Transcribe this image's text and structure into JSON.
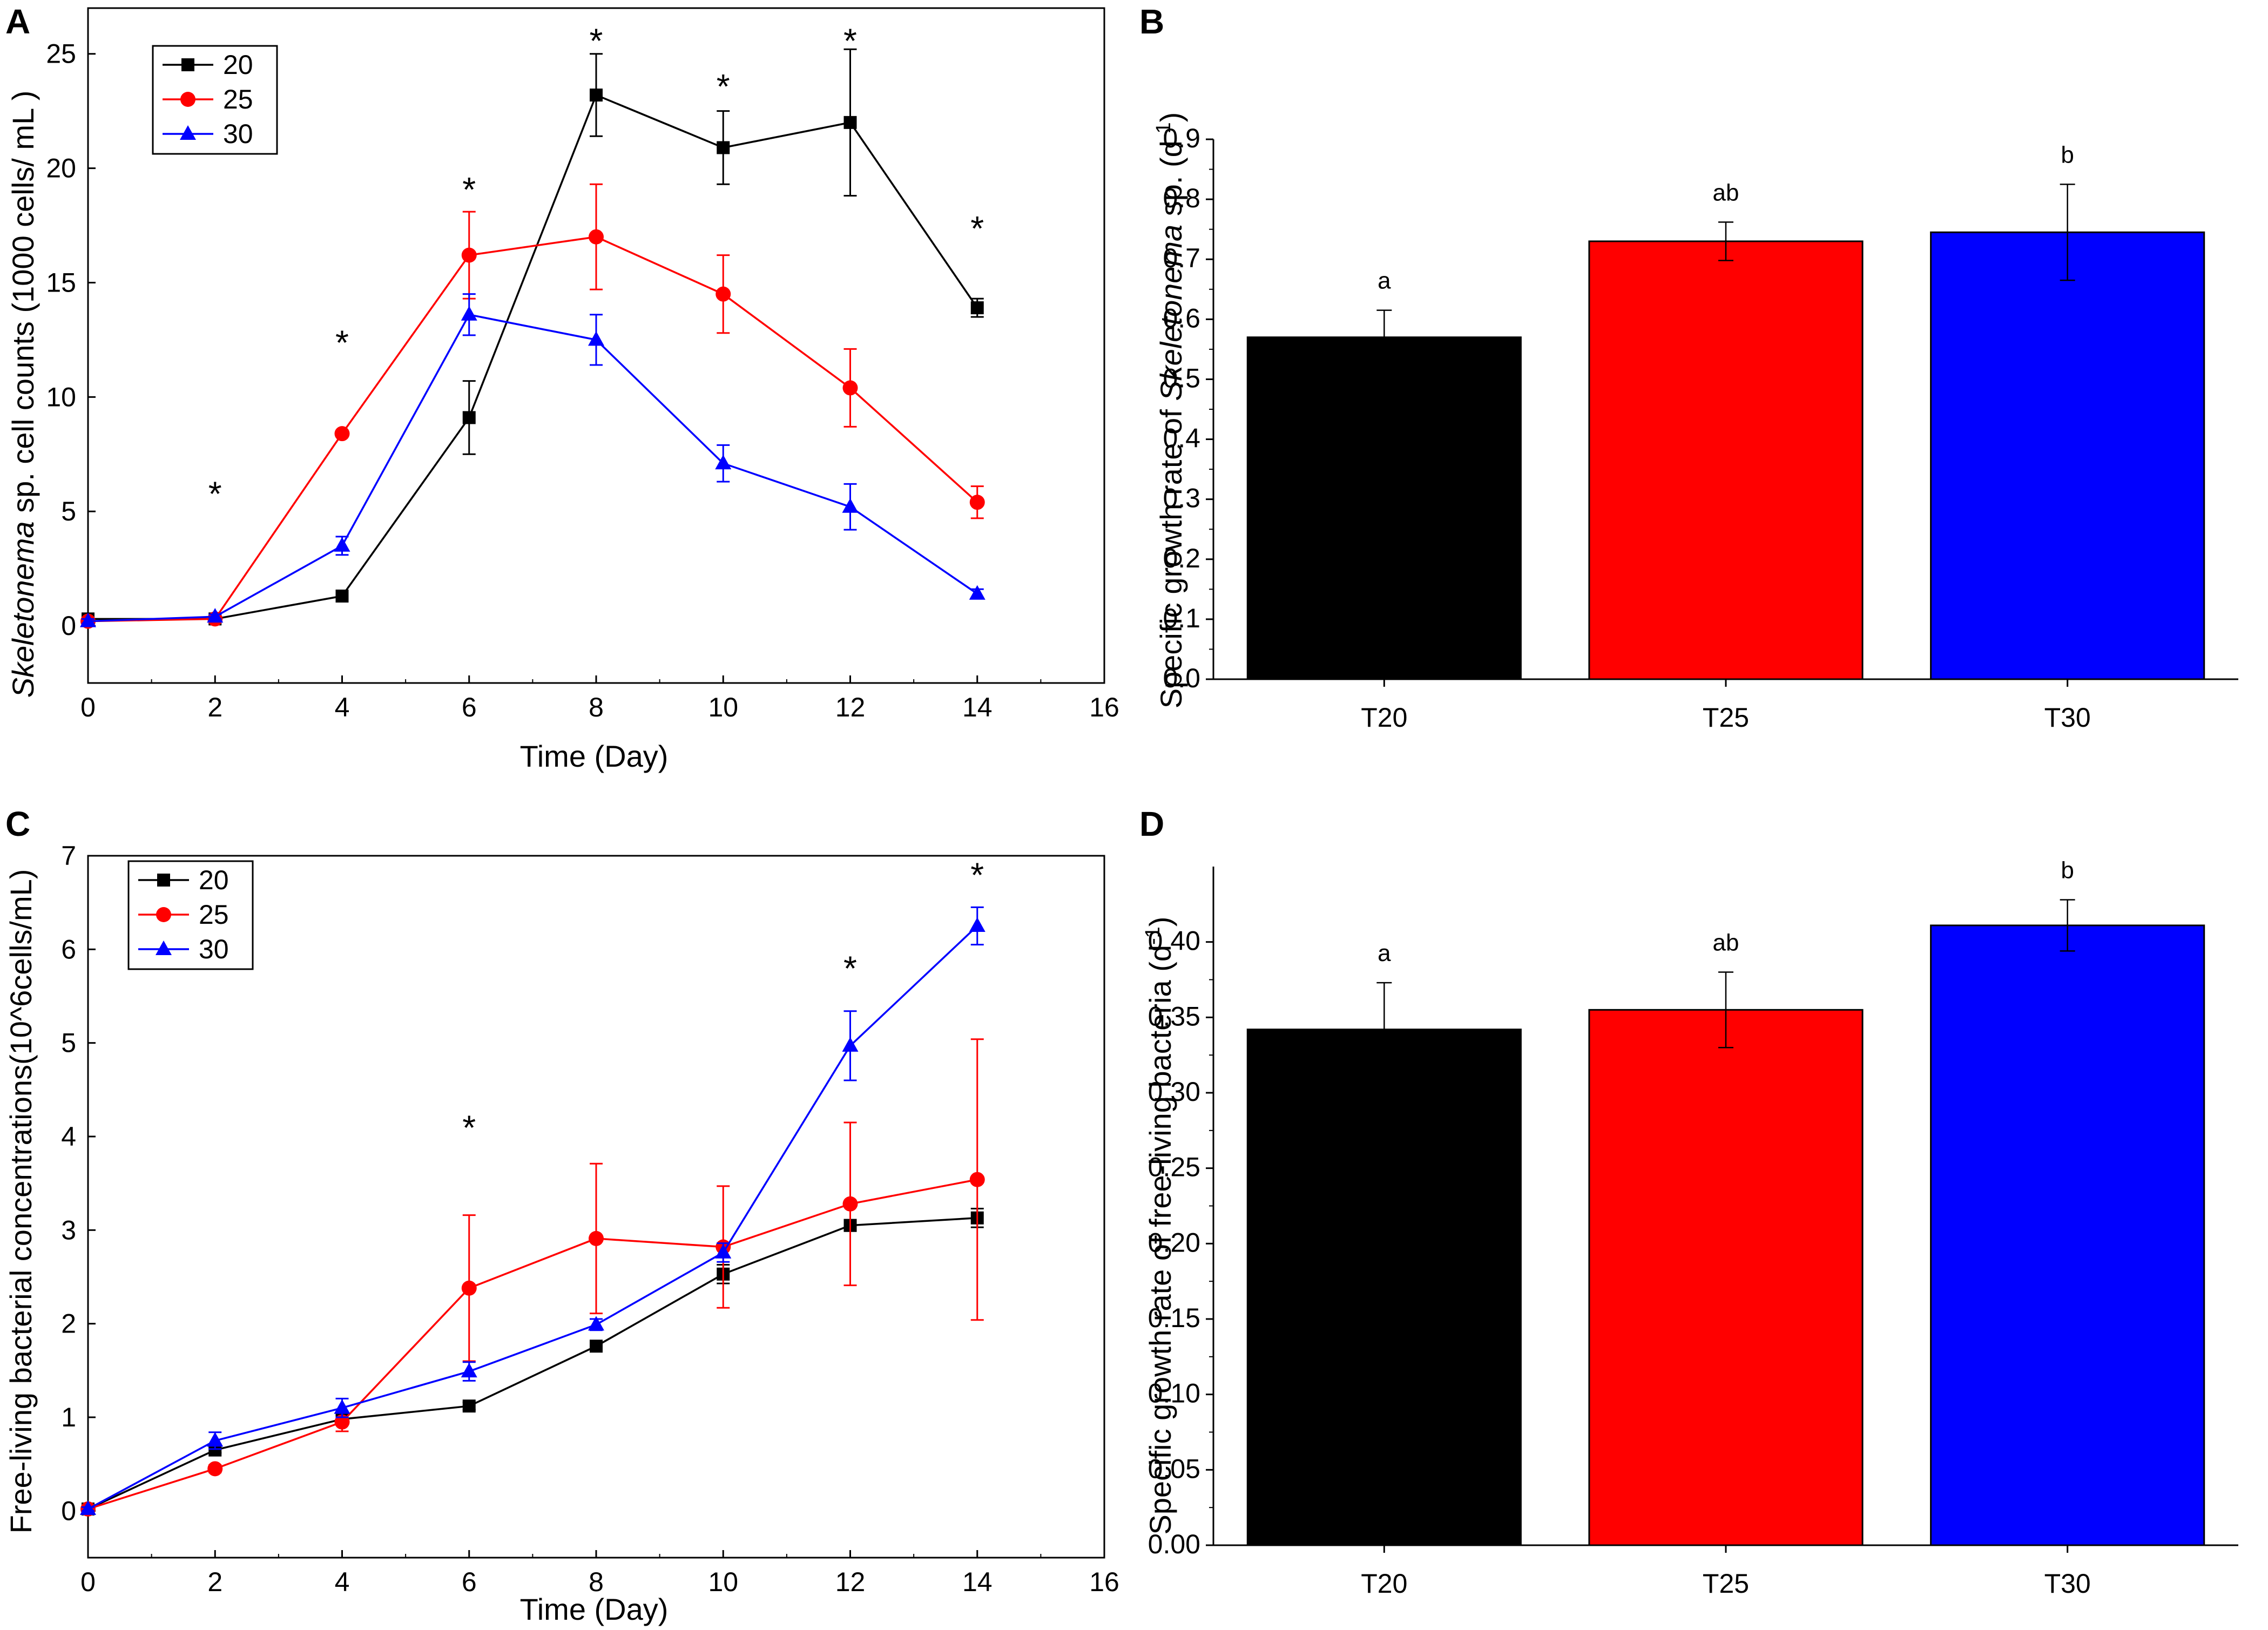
{
  "panels": [
    {
      "letter": "A",
      "chart_data": {
        "type": "line",
        "x": [
          0,
          2,
          4,
          6,
          8,
          10,
          12,
          14
        ],
        "series": [
          {
            "name": "20",
            "marker": "square",
            "color": "#000000",
            "values": [
              0.3,
              0.3,
              1.3,
              9.1,
              23.2,
              20.9,
              22.0,
              13.9
            ],
            "errors": [
              0.1,
              0.1,
              0.15,
              1.6,
              1.8,
              1.6,
              3.2,
              0.4
            ]
          },
          {
            "name": "25",
            "marker": "circle",
            "color": "#ff0000",
            "values": [
              0.2,
              0.3,
              8.4,
              16.2,
              17.0,
              14.5,
              10.4,
              5.4
            ],
            "errors": [
              0.1,
              0.1,
              0.1,
              1.9,
              2.3,
              1.7,
              1.7,
              0.7
            ]
          },
          {
            "name": "30",
            "marker": "triangle",
            "color": "#0000ff",
            "values": [
              0.2,
              0.4,
              3.5,
              13.6,
              12.5,
              7.1,
              5.2,
              1.4
            ],
            "errors": [
              0.1,
              0.1,
              0.4,
              0.9,
              1.1,
              0.8,
              1.0,
              0.2
            ]
          }
        ],
        "stars": [
          {
            "x": 2,
            "y": 6.2,
            "label": "*"
          },
          {
            "x": 4,
            "y": 12.8,
            "label": "*"
          },
          {
            "x": 6,
            "y": 19.5,
            "label": "*"
          },
          {
            "x": 8,
            "y": 26.0,
            "label": "*"
          },
          {
            "x": 10,
            "y": 24.0,
            "label": "*"
          },
          {
            "x": 12,
            "y": 26.0,
            "label": "*"
          },
          {
            "x": 14,
            "y": 17.8,
            "label": "*"
          }
        ],
        "xlabel": "Time (Day)",
        "ylabel_parts": [
          {
            "text": "Skeletonema",
            "italic": true
          },
          {
            "text": " sp. cell counts (1000 cells/ mL )",
            "italic": false
          }
        ],
        "xlim": [
          0,
          16
        ],
        "ylim": [
          -2.5,
          27
        ],
        "xticks": [
          0,
          2,
          4,
          6,
          8,
          10,
          12,
          14,
          16
        ],
        "yticks": [
          0,
          5,
          10,
          15,
          20,
          25
        ],
        "legend_position": "top-left"
      }
    },
    {
      "letter": "B",
      "chart_data": {
        "type": "bar",
        "categories": [
          "T20",
          "T25",
          "T30"
        ],
        "values": [
          0.57,
          0.73,
          0.745
        ],
        "errors": [
          0.045,
          0.032,
          0.08
        ],
        "colors": [
          "#000000",
          "#ff0000",
          "#0000ff"
        ],
        "significance": [
          "a",
          "ab",
          "b"
        ],
        "ylabel_parts": [
          {
            "text": "Specific growth rate of ",
            "italic": false
          },
          {
            "text": "Skeletonema",
            "italic": true
          },
          {
            "text": " sp. (d",
            "italic": false
          },
          {
            "text": "-1",
            "italic": false,
            "sup": true
          },
          {
            "text": ")",
            "italic": false
          }
        ],
        "ylim": [
          0,
          0.9
        ],
        "yticks": [
          0.0,
          0.1,
          0.2,
          0.3,
          0.4,
          0.5,
          0.6,
          0.7,
          0.8,
          0.9
        ],
        "ytick_labels": [
          "0.0",
          "0.1",
          "0.2",
          "0.3",
          "0.4",
          "0.5",
          "0.6",
          "0.7",
          "0.8",
          "0.9"
        ]
      }
    },
    {
      "letter": "C",
      "chart_data": {
        "type": "line",
        "x": [
          0,
          2,
          4,
          6,
          8,
          10,
          12,
          14
        ],
        "series": [
          {
            "name": "20",
            "marker": "square",
            "color": "#000000",
            "values": [
              0.02,
              0.65,
              0.98,
              1.12,
              1.76,
              2.53,
              3.05,
              3.13
            ],
            "errors": [
              0.02,
              0.03,
              0.03,
              0.04,
              0.04,
              0.1,
              0.06,
              0.1
            ]
          },
          {
            "name": "25",
            "marker": "circle",
            "color": "#ff0000",
            "values": [
              0.02,
              0.45,
              0.95,
              2.38,
              2.91,
              2.82,
              3.28,
              3.54
            ],
            "errors": [
              0.02,
              0.04,
              0.1,
              0.78,
              0.8,
              0.65,
              0.87,
              1.5
            ]
          },
          {
            "name": "30",
            "marker": "triangle",
            "color": "#0000ff",
            "values": [
              0.02,
              0.75,
              1.1,
              1.49,
              1.99,
              2.76,
              4.97,
              6.25
            ],
            "errors": [
              0.02,
              0.09,
              0.1,
              0.1,
              0.06,
              0.1,
              0.37,
              0.2
            ]
          }
        ],
        "stars": [
          {
            "x": 6,
            "y": 4.2,
            "label": "*"
          },
          {
            "x": 12,
            "y": 5.9,
            "label": "*"
          },
          {
            "x": 14,
            "y": 6.9,
            "label": "*"
          }
        ],
        "xlabel": "Time (Day)",
        "ylabel_parts": [
          {
            "text": "Free-living bacterial concentrations(10^6cells/mL)",
            "italic": false
          }
        ],
        "xlim": [
          0,
          16
        ],
        "ylim": [
          -0.5,
          7
        ],
        "xticks": [
          0,
          2,
          4,
          6,
          8,
          10,
          12,
          14,
          16
        ],
        "yticks": [
          0,
          1,
          2,
          3,
          4,
          5,
          6,
          7
        ],
        "legend_position": "top-left"
      }
    },
    {
      "letter": "D",
      "chart_data": {
        "type": "bar",
        "categories": [
          "T20",
          "T25",
          "T30"
        ],
        "values": [
          0.342,
          0.355,
          0.411
        ],
        "errors": [
          0.031,
          0.025,
          0.017
        ],
        "colors": [
          "#000000",
          "#ff0000",
          "#0000ff"
        ],
        "significance": [
          "a",
          "ab",
          "b"
        ],
        "ylabel_parts": [
          {
            "text": "Specific growth rate of free-living bacteria (d",
            "italic": false
          },
          {
            "text": "-1",
            "italic": false,
            "sup": true
          },
          {
            "text": ")",
            "italic": false
          }
        ],
        "ylim": [
          0,
          0.45
        ],
        "yticks": [
          0.0,
          0.05,
          0.1,
          0.15,
          0.2,
          0.25,
          0.3,
          0.35,
          0.4
        ],
        "ytick_labels": [
          "0.00",
          "0.05",
          "0.10",
          "0.15",
          "0.20",
          "0.25",
          "0.30",
          "0.35",
          "0.40"
        ]
      }
    }
  ]
}
